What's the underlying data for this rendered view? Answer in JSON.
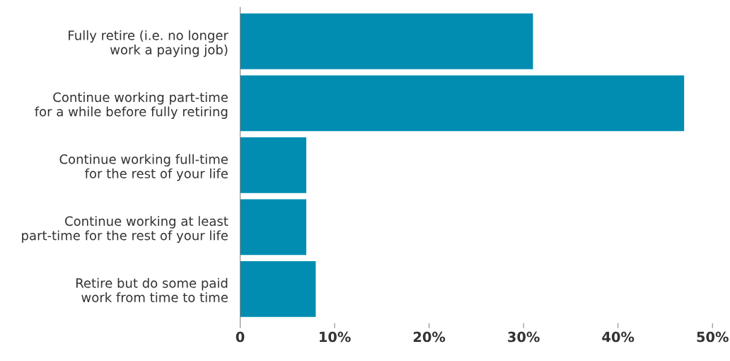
{
  "chart_data": {
    "type": "bar",
    "orientation": "horizontal",
    "categories": [
      "Fully retire (i.e. no longer\nwork a paying job)",
      "Continue working part-time\nfor a while before fully retiring",
      "Continue working full-time\nfor the rest of your life",
      "Continue working at least\npart-time for the rest of your life",
      "Retire but do some paid\nwork from time to time"
    ],
    "values": [
      31,
      47,
      7,
      7,
      8
    ],
    "color": "#008db1",
    "xlim": [
      0,
      50
    ],
    "xticks": [
      0,
      {
        "value": 10,
        "label": "10%"
      },
      {
        "value": 20,
        "label": "20%"
      },
      {
        "value": 30,
        "label": "30%"
      },
      {
        "value": 40,
        "label": "40%"
      },
      {
        "value": 50,
        "label": "50%"
      }
    ],
    "grid": false,
    "legend": false
  }
}
